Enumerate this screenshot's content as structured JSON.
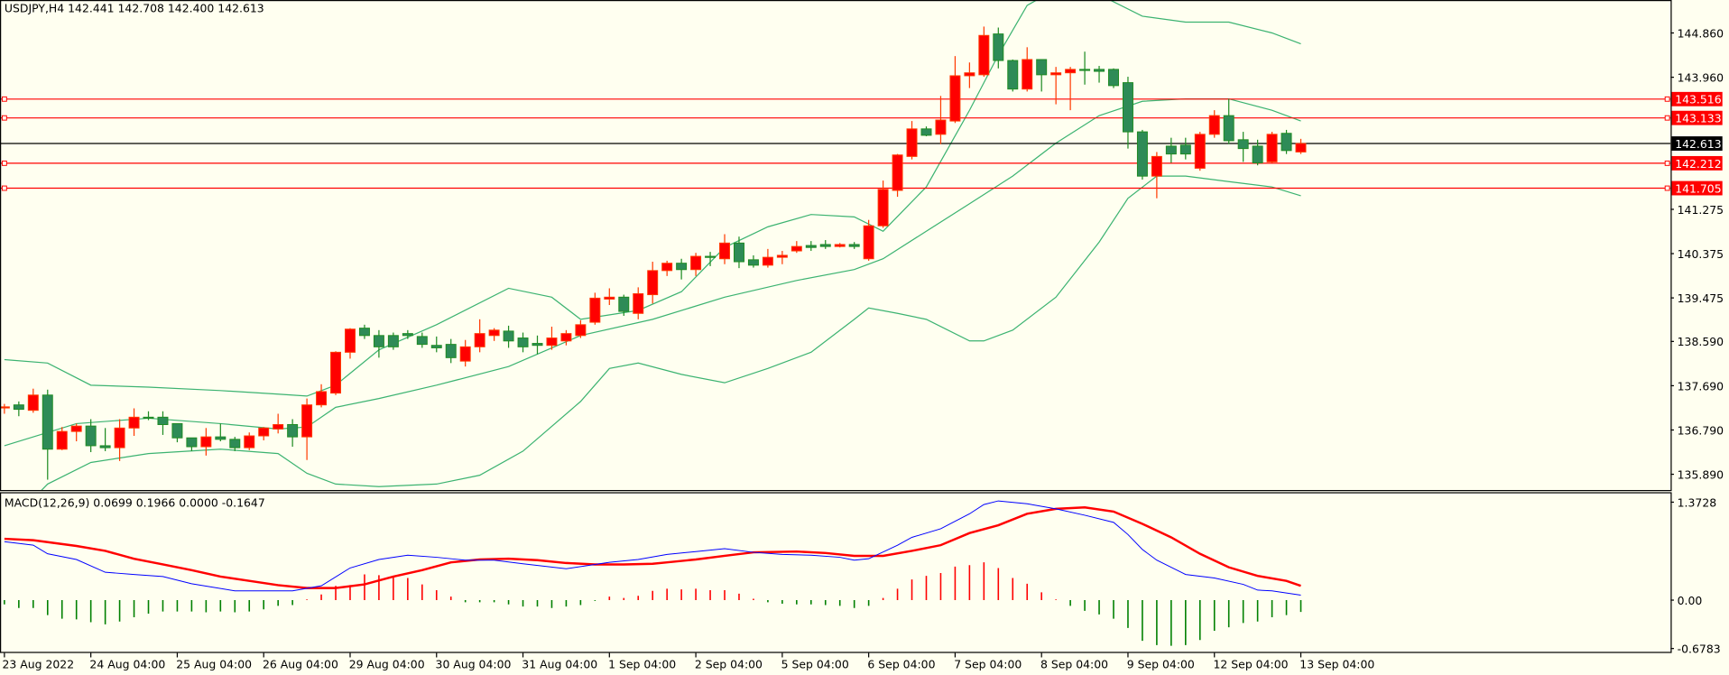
{
  "chart_data": {
    "type": "candlestick",
    "symbol_header": "USDJPY,H4  142.441 142.708 142.400 142.613",
    "colors": {
      "bull": "#FF0000",
      "bull_border": "#FF3A00",
      "bear": "#2E8B57",
      "bear_border": "#1E8B22",
      "bands": "#3CB371",
      "background": "#FFFFF0",
      "level": "#FF0000",
      "macd_main": "#0000FF",
      "macd_signal": "#FF0000",
      "hist_pos": "#FF0000",
      "hist_neg": "#008000"
    },
    "price_range": [
      135.57,
      145.53
    ],
    "price_ticks": [
      "144.860",
      "143.960",
      "141.275",
      "140.375",
      "139.475",
      "138.590",
      "137.690",
      "136.790",
      "135.890"
    ],
    "current_price": "142.613",
    "levels": [
      "143.516",
      "143.133",
      "142.212",
      "141.705"
    ],
    "time_labels": [
      "23 Aug 2022",
      "24 Aug 04:00",
      "25 Aug 04:00",
      "26 Aug 04:00",
      "29 Aug 04:00",
      "30 Aug 04:00",
      "31 Aug 04:00",
      "1 Sep 04:00",
      "2 Sep 04:00",
      "5 Sep 04:00",
      "6 Sep 04:00",
      "7 Sep 04:00",
      "8 Sep 04:00",
      "9 Sep 04:00",
      "12 Sep 04:00",
      "13 Sep 04:00"
    ],
    "candles_ohlc": [
      [
        137.24,
        137.32,
        137.12,
        137.26
      ],
      [
        137.3,
        137.37,
        137.07,
        137.21
      ],
      [
        137.19,
        137.63,
        137.14,
        137.5
      ],
      [
        137.5,
        137.61,
        135.78,
        136.4
      ],
      [
        136.4,
        136.85,
        136.38,
        136.76
      ],
      [
        136.76,
        136.92,
        136.56,
        136.87
      ],
      [
        136.87,
        137.01,
        136.34,
        136.47
      ],
      [
        136.47,
        136.83,
        136.36,
        136.43
      ],
      [
        136.43,
        137.01,
        136.16,
        136.83
      ],
      [
        136.83,
        137.23,
        136.67,
        137.05
      ],
      [
        137.05,
        137.17,
        136.99,
        137.03
      ],
      [
        137.05,
        137.17,
        136.69,
        136.9
      ],
      [
        136.92,
        136.92,
        136.54,
        136.63
      ],
      [
        136.63,
        136.63,
        136.36,
        136.45
      ],
      [
        136.45,
        136.83,
        136.27,
        136.65
      ],
      [
        136.65,
        136.92,
        136.56,
        136.6
      ],
      [
        136.6,
        136.65,
        136.36,
        136.43
      ],
      [
        136.43,
        136.74,
        136.38,
        136.67
      ],
      [
        136.67,
        136.85,
        136.58,
        136.83
      ],
      [
        136.81,
        137.12,
        136.72,
        136.9
      ],
      [
        136.9,
        137.01,
        136.45,
        136.65
      ],
      [
        136.65,
        137.43,
        136.18,
        137.3
      ],
      [
        137.3,
        137.72,
        137.25,
        137.57
      ],
      [
        137.54,
        138.39,
        137.5,
        138.37
      ],
      [
        138.37,
        138.86,
        138.24,
        138.84
      ],
      [
        138.86,
        138.93,
        138.64,
        138.71
      ],
      [
        138.71,
        138.82,
        138.26,
        138.48
      ],
      [
        138.71,
        138.77,
        138.42,
        138.48
      ],
      [
        138.75,
        138.82,
        138.64,
        138.71
      ],
      [
        138.69,
        138.77,
        138.46,
        138.53
      ],
      [
        138.51,
        138.69,
        138.37,
        138.46
      ],
      [
        138.53,
        138.64,
        138.15,
        138.26
      ],
      [
        138.19,
        138.62,
        138.08,
        138.48
      ],
      [
        138.48,
        139.04,
        138.37,
        138.75
      ],
      [
        138.71,
        138.86,
        138.6,
        138.82
      ],
      [
        138.8,
        138.91,
        138.46,
        138.6
      ],
      [
        138.66,
        138.77,
        138.37,
        138.48
      ],
      [
        138.55,
        138.71,
        138.33,
        138.51
      ],
      [
        138.51,
        138.89,
        138.42,
        138.66
      ],
      [
        138.6,
        138.82,
        138.51,
        138.75
      ],
      [
        138.71,
        139.02,
        138.66,
        138.93
      ],
      [
        138.98,
        139.58,
        138.93,
        139.47
      ],
      [
        139.45,
        139.67,
        139.33,
        139.49
      ],
      [
        139.49,
        139.54,
        139.11,
        139.2
      ],
      [
        139.16,
        139.69,
        139.04,
        139.56
      ],
      [
        139.54,
        140.21,
        139.36,
        140.03
      ],
      [
        140.03,
        140.23,
        139.92,
        140.18
      ],
      [
        140.18,
        140.27,
        139.85,
        140.05
      ],
      [
        140.05,
        140.39,
        139.92,
        140.32
      ],
      [
        140.32,
        140.41,
        140.12,
        140.3
      ],
      [
        140.27,
        140.77,
        140.16,
        140.59
      ],
      [
        140.59,
        140.72,
        140.08,
        140.21
      ],
      [
        140.25,
        140.34,
        140.09,
        140.14
      ],
      [
        140.14,
        140.47,
        140.09,
        140.3
      ],
      [
        140.3,
        140.43,
        140.16,
        140.34
      ],
      [
        140.43,
        140.63,
        140.39,
        140.52
      ],
      [
        140.54,
        140.63,
        140.43,
        140.5
      ],
      [
        140.56,
        140.65,
        140.47,
        140.52
      ],
      [
        140.52,
        140.59,
        140.5,
        140.56
      ],
      [
        140.56,
        140.61,
        140.47,
        140.52
      ],
      [
        140.27,
        141.06,
        140.23,
        140.94
      ],
      [
        140.94,
        141.86,
        140.9,
        141.68
      ],
      [
        141.66,
        142.4,
        141.53,
        142.38
      ],
      [
        142.35,
        143.07,
        142.29,
        142.91
      ],
      [
        142.91,
        142.96,
        142.76,
        142.78
      ],
      [
        142.8,
        143.58,
        142.6,
        143.09
      ],
      [
        143.07,
        144.39,
        143.03,
        143.99
      ],
      [
        143.99,
        144.26,
        143.74,
        144.05
      ],
      [
        144.01,
        144.99,
        143.97,
        144.81
      ],
      [
        144.84,
        144.97,
        144.14,
        144.3
      ],
      [
        144.3,
        144.32,
        143.67,
        143.72
      ],
      [
        143.72,
        144.57,
        143.67,
        144.32
      ],
      [
        144.32,
        144.32,
        143.67,
        144.01
      ],
      [
        144.01,
        144.17,
        143.41,
        144.05
      ],
      [
        144.05,
        144.17,
        143.29,
        144.12
      ],
      [
        144.12,
        144.48,
        143.81,
        144.1
      ],
      [
        144.12,
        144.19,
        143.85,
        144.08
      ],
      [
        144.12,
        144.14,
        143.74,
        143.79
      ],
      [
        143.85,
        143.97,
        142.51,
        142.85
      ],
      [
        142.85,
        142.89,
        141.88,
        141.95
      ],
      [
        141.95,
        142.44,
        141.5,
        142.35
      ],
      [
        142.56,
        142.73,
        142.22,
        142.4
      ],
      [
        142.58,
        142.73,
        142.29,
        142.4
      ],
      [
        142.11,
        142.85,
        142.06,
        142.8
      ],
      [
        142.8,
        143.29,
        142.73,
        143.18
      ],
      [
        143.18,
        143.52,
        142.6,
        142.67
      ],
      [
        142.69,
        142.85,
        142.24,
        142.51
      ],
      [
        142.56,
        142.69,
        142.17,
        142.22
      ],
      [
        142.24,
        142.85,
        142.22,
        142.8
      ],
      [
        142.82,
        142.89,
        142.4,
        142.47
      ],
      [
        142.441,
        142.708,
        142.4,
        142.613
      ]
    ],
    "bollinger": {
      "upper": [
        [
          0,
          138.22
        ],
        [
          3,
          138.15
        ],
        [
          6,
          137.7
        ],
        [
          10,
          137.66
        ],
        [
          15,
          137.59
        ],
        [
          19,
          137.52
        ],
        [
          21,
          137.48
        ],
        [
          23,
          137.7
        ],
        [
          26,
          138.42
        ],
        [
          30,
          138.93
        ],
        [
          35,
          139.67
        ],
        [
          38,
          139.49
        ],
        [
          40,
          139.04
        ],
        [
          44,
          139.22
        ],
        [
          47,
          139.6
        ],
        [
          50,
          140.5
        ],
        [
          53,
          140.92
        ],
        [
          56,
          141.17
        ],
        [
          59,
          141.12
        ],
        [
          61,
          140.83
        ],
        [
          64,
          141.73
        ],
        [
          67,
          143.29
        ],
        [
          69,
          144.41
        ],
        [
          71,
          145.42
        ],
        [
          73,
          145.75
        ],
        [
          76,
          145.64
        ],
        [
          79,
          145.2
        ],
        [
          82,
          145.08
        ],
        [
          85,
          145.08
        ],
        [
          88,
          144.86
        ],
        [
          90,
          144.64
        ]
      ],
      "middle": [
        [
          0,
          136.47
        ],
        [
          5,
          136.92
        ],
        [
          10,
          137.03
        ],
        [
          15,
          136.92
        ],
        [
          19,
          136.81
        ],
        [
          21,
          136.85
        ],
        [
          23,
          137.25
        ],
        [
          26,
          137.43
        ],
        [
          30,
          137.7
        ],
        [
          35,
          138.08
        ],
        [
          40,
          138.71
        ],
        [
          45,
          139.04
        ],
        [
          50,
          139.49
        ],
        [
          55,
          139.83
        ],
        [
          59,
          140.05
        ],
        [
          61,
          140.27
        ],
        [
          64,
          140.83
        ],
        [
          67,
          141.39
        ],
        [
          70,
          141.95
        ],
        [
          73,
          142.62
        ],
        [
          76,
          143.18
        ],
        [
          79,
          143.47
        ],
        [
          82,
          143.52
        ],
        [
          85,
          143.52
        ],
        [
          88,
          143.29
        ],
        [
          90,
          143.07
        ]
      ],
      "lower": [
        [
          0,
          134.79
        ],
        [
          3,
          135.69
        ],
        [
          6,
          136.13
        ],
        [
          10,
          136.31
        ],
        [
          15,
          136.4
        ],
        [
          19,
          136.31
        ],
        [
          21,
          135.91
        ],
        [
          23,
          135.69
        ],
        [
          26,
          135.64
        ],
        [
          30,
          135.69
        ],
        [
          33,
          135.87
        ],
        [
          36,
          136.36
        ],
        [
          40,
          137.37
        ],
        [
          42,
          138.04
        ],
        [
          44,
          138.15
        ],
        [
          47,
          137.92
        ],
        [
          50,
          137.75
        ],
        [
          53,
          138.04
        ],
        [
          56,
          138.37
        ],
        [
          59,
          139.04
        ],
        [
          60,
          139.27
        ],
        [
          62,
          139.16
        ],
        [
          64,
          139.04
        ],
        [
          67,
          138.6
        ],
        [
          68,
          138.6
        ],
        [
          70,
          138.82
        ],
        [
          73,
          139.49
        ],
        [
          76,
          140.61
        ],
        [
          78,
          141.5
        ],
        [
          80,
          141.95
        ],
        [
          82,
          141.95
        ],
        [
          85,
          141.84
        ],
        [
          88,
          141.73
        ],
        [
          90,
          141.55
        ]
      ]
    },
    "macd": {
      "title": "MACD(12,26,9) 0.0699 0.1966 0.0000 -0.1647",
      "range": [
        -0.8,
        1.5
      ],
      "ticks": [
        "1.3728",
        "0.00",
        "-0.6783"
      ],
      "histogram": [
        -0.06,
        -0.11,
        -0.11,
        -0.21,
        -0.26,
        -0.27,
        -0.31,
        -0.34,
        -0.3,
        -0.24,
        -0.19,
        -0.16,
        -0.16,
        -0.16,
        -0.17,
        -0.16,
        -0.17,
        -0.16,
        -0.13,
        -0.08,
        -0.07,
        0.01,
        0.08,
        0.2,
        0.21,
        0.36,
        0.35,
        0.34,
        0.31,
        0.22,
        0.14,
        0.05,
        -0.03,
        -0.03,
        -0.03,
        -0.06,
        -0.09,
        -0.09,
        -0.11,
        -0.09,
        -0.07,
        -0.01,
        0.05,
        0.03,
        0.06,
        0.13,
        0.16,
        0.15,
        0.16,
        0.14,
        0.14,
        0.09,
        0.02,
        -0.03,
        -0.05,
        -0.06,
        -0.06,
        -0.07,
        -0.08,
        -0.11,
        -0.08,
        0.03,
        0.16,
        0.29,
        0.34,
        0.38,
        0.47,
        0.49,
        0.53,
        0.45,
        0.31,
        0.23,
        0.11,
        0.01,
        -0.08,
        -0.15,
        -0.2,
        -0.26,
        -0.39,
        -0.57,
        -0.63,
        -0.64,
        -0.63,
        -0.56,
        -0.43,
        -0.38,
        -0.32,
        -0.3,
        -0.24,
        -0.21,
        -0.165
      ],
      "main": [
        [
          0,
          0.82
        ],
        [
          2,
          0.77
        ],
        [
          3,
          0.65
        ],
        [
          5,
          0.57
        ],
        [
          7,
          0.39
        ],
        [
          9,
          0.36
        ],
        [
          11,
          0.33
        ],
        [
          13,
          0.23
        ],
        [
          16,
          0.13
        ],
        [
          18,
          0.13
        ],
        [
          20,
          0.13
        ],
        [
          22,
          0.2
        ],
        [
          24,
          0.45
        ],
        [
          26,
          0.57
        ],
        [
          28,
          0.63
        ],
        [
          30,
          0.6
        ],
        [
          32,
          0.56
        ],
        [
          34,
          0.56
        ],
        [
          36,
          0.51
        ],
        [
          39,
          0.44
        ],
        [
          42,
          0.53
        ],
        [
          44,
          0.57
        ],
        [
          46,
          0.64
        ],
        [
          48,
          0.68
        ],
        [
          50,
          0.72
        ],
        [
          52,
          0.67
        ],
        [
          54,
          0.64
        ],
        [
          56,
          0.63
        ],
        [
          58,
          0.6
        ],
        [
          59,
          0.56
        ],
        [
          60,
          0.58
        ],
        [
          62,
          0.77
        ],
        [
          63,
          0.88
        ],
        [
          65,
          1.0
        ],
        [
          67,
          1.21
        ],
        [
          68,
          1.34
        ],
        [
          69,
          1.39
        ],
        [
          71,
          1.35
        ],
        [
          73,
          1.28
        ],
        [
          75,
          1.19
        ],
        [
          77,
          1.09
        ],
        [
          78,
          0.92
        ],
        [
          79,
          0.71
        ],
        [
          80,
          0.56
        ],
        [
          82,
          0.36
        ],
        [
          84,
          0.31
        ],
        [
          86,
          0.22
        ],
        [
          87,
          0.14
        ],
        [
          88,
          0.13
        ],
        [
          90,
          0.07
        ]
      ],
      "signal": [
        [
          0,
          0.86
        ],
        [
          2,
          0.84
        ],
        [
          5,
          0.76
        ],
        [
          7,
          0.69
        ],
        [
          9,
          0.58
        ],
        [
          11,
          0.5
        ],
        [
          13,
          0.42
        ],
        [
          15,
          0.33
        ],
        [
          17,
          0.27
        ],
        [
          19,
          0.21
        ],
        [
          21,
          0.17
        ],
        [
          23,
          0.17
        ],
        [
          25,
          0.22
        ],
        [
          27,
          0.33
        ],
        [
          29,
          0.42
        ],
        [
          31,
          0.53
        ],
        [
          33,
          0.57
        ],
        [
          35,
          0.58
        ],
        [
          37,
          0.56
        ],
        [
          39,
          0.52
        ],
        [
          41,
          0.5
        ],
        [
          43,
          0.5
        ],
        [
          45,
          0.51
        ],
        [
          46,
          0.53
        ],
        [
          48,
          0.57
        ],
        [
          50,
          0.62
        ],
        [
          52,
          0.67
        ],
        [
          55,
          0.68
        ],
        [
          57,
          0.66
        ],
        [
          59,
          0.62
        ],
        [
          61,
          0.62
        ],
        [
          63,
          0.69
        ],
        [
          65,
          0.77
        ],
        [
          67,
          0.94
        ],
        [
          69,
          1.05
        ],
        [
          71,
          1.21
        ],
        [
          73,
          1.28
        ],
        [
          75,
          1.3
        ],
        [
          77,
          1.24
        ],
        [
          79,
          1.07
        ],
        [
          81,
          0.88
        ],
        [
          83,
          0.65
        ],
        [
          85,
          0.46
        ],
        [
          87,
          0.34
        ],
        [
          89,
          0.27
        ],
        [
          90,
          0.2
        ]
      ]
    }
  }
}
